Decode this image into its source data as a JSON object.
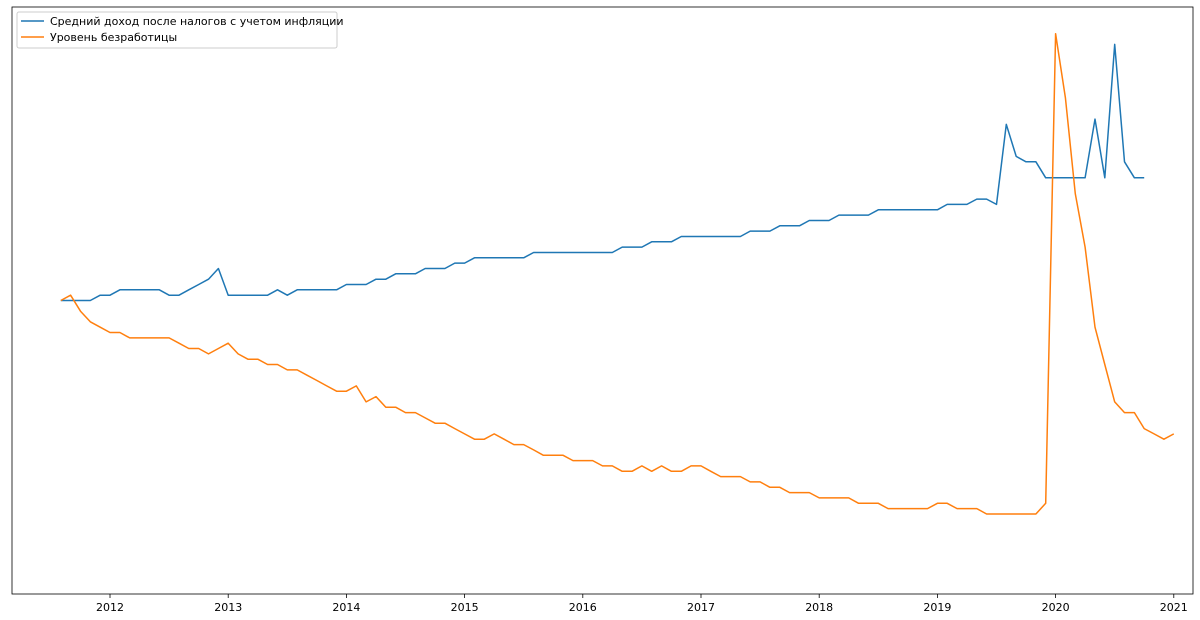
{
  "chart_data": {
    "type": "line",
    "title": "",
    "xlabel": "",
    "ylabel": "",
    "x_tick_labels": [
      "2012",
      "2013",
      "2014",
      "2015",
      "2016",
      "2017",
      "2018",
      "2019",
      "2020",
      "2021"
    ],
    "y_tick_labels": [],
    "grid": false,
    "legend_position": "top-left",
    "x_start": "2011-08",
    "x_step": "month",
    "ylim": [
      -0.05,
      1.05
    ],
    "series": [
      {
        "name": "Средний доход после налогов с учетом инфляции",
        "color": "#1f77b4",
        "values": [
          0.5,
          0.5,
          0.5,
          0.5,
          0.51,
          0.51,
          0.52,
          0.52,
          0.52,
          0.52,
          0.52,
          0.51,
          0.51,
          0.52,
          0.53,
          0.54,
          0.56,
          0.51,
          0.51,
          0.51,
          0.51,
          0.51,
          0.52,
          0.51,
          0.52,
          0.52,
          0.52,
          0.52,
          0.52,
          0.53,
          0.53,
          0.53,
          0.54,
          0.54,
          0.55,
          0.55,
          0.55,
          0.56,
          0.56,
          0.56,
          0.57,
          0.57,
          0.58,
          0.58,
          0.58,
          0.58,
          0.58,
          0.58,
          0.59,
          0.59,
          0.59,
          0.59,
          0.59,
          0.59,
          0.59,
          0.59,
          0.59,
          0.6,
          0.6,
          0.6,
          0.61,
          0.61,
          0.61,
          0.62,
          0.62,
          0.62,
          0.62,
          0.62,
          0.62,
          0.62,
          0.63,
          0.63,
          0.63,
          0.64,
          0.64,
          0.64,
          0.65,
          0.65,
          0.65,
          0.66,
          0.66,
          0.66,
          0.66,
          0.67,
          0.67,
          0.67,
          0.67,
          0.67,
          0.67,
          0.67,
          0.68,
          0.68,
          0.68,
          0.69,
          0.69,
          0.68,
          0.83,
          0.77,
          0.76,
          0.76,
          0.73,
          0.73,
          0.73,
          0.73,
          0.73,
          0.84,
          0.73,
          0.98,
          0.76,
          0.73,
          0.73
        ]
      },
      {
        "name": "Уровень безработицы",
        "color": "#ff7f0e",
        "values": [
          0.5,
          0.51,
          0.48,
          0.46,
          0.45,
          0.44,
          0.44,
          0.43,
          0.43,
          0.43,
          0.43,
          0.43,
          0.42,
          0.41,
          0.41,
          0.4,
          0.41,
          0.42,
          0.4,
          0.39,
          0.39,
          0.38,
          0.38,
          0.37,
          0.37,
          0.36,
          0.35,
          0.34,
          0.33,
          0.33,
          0.34,
          0.31,
          0.32,
          0.3,
          0.3,
          0.29,
          0.29,
          0.28,
          0.27,
          0.27,
          0.26,
          0.25,
          0.24,
          0.24,
          0.25,
          0.24,
          0.23,
          0.23,
          0.22,
          0.21,
          0.21,
          0.21,
          0.2,
          0.2,
          0.2,
          0.19,
          0.19,
          0.18,
          0.18,
          0.19,
          0.18,
          0.19,
          0.18,
          0.18,
          0.19,
          0.19,
          0.18,
          0.17,
          0.17,
          0.17,
          0.16,
          0.16,
          0.15,
          0.15,
          0.14,
          0.14,
          0.14,
          0.13,
          0.13,
          0.13,
          0.13,
          0.12,
          0.12,
          0.12,
          0.11,
          0.11,
          0.11,
          0.11,
          0.11,
          0.12,
          0.12,
          0.11,
          0.11,
          0.11,
          0.1,
          0.1,
          0.1,
          0.1,
          0.1,
          0.1,
          0.12,
          1.0,
          0.88,
          0.7,
          0.6,
          0.45,
          0.38,
          0.31,
          0.29,
          0.29,
          0.26,
          0.25,
          0.24,
          0.25
        ]
      }
    ]
  }
}
